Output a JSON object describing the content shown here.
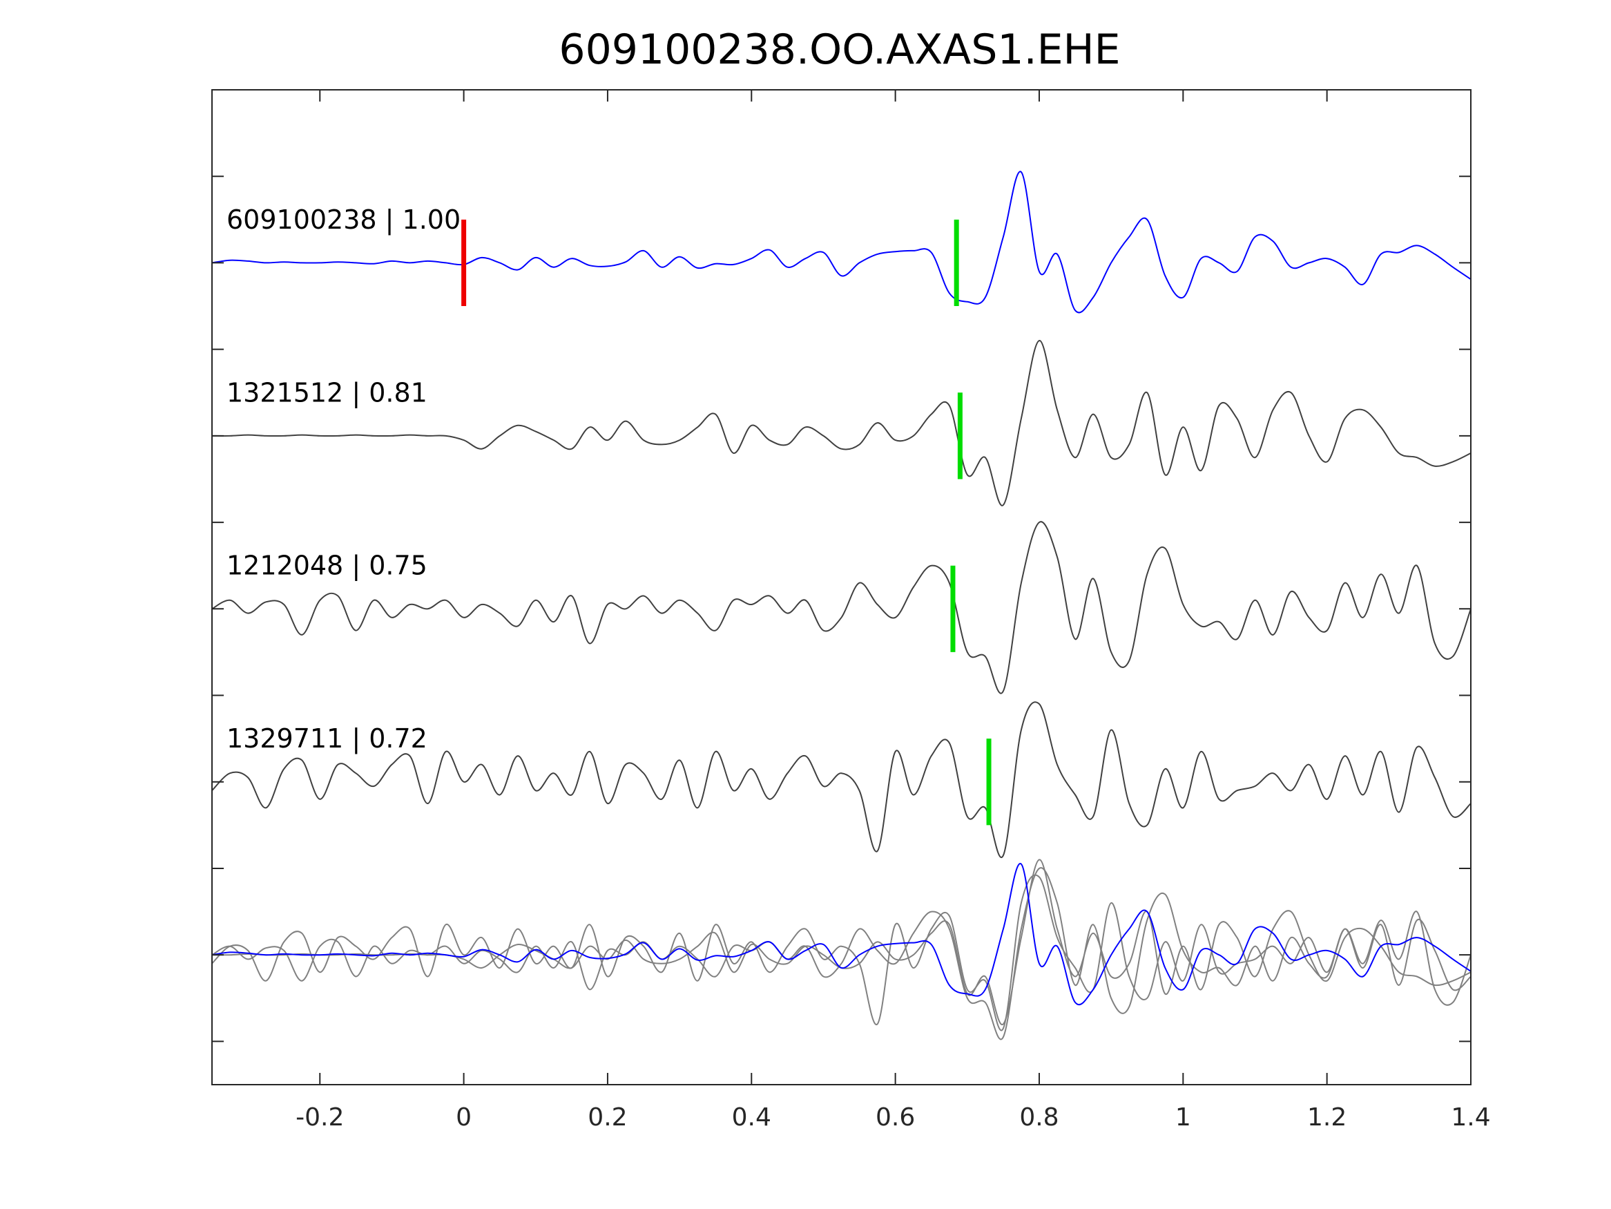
{
  "chart_data": {
    "type": "line",
    "title": "609100238.OO.AXAS1.EHE",
    "xlabel": "",
    "ylabel": "",
    "xlim": [
      -0.35,
      1.4
    ],
    "ylim": [
      -1.5,
      10
    ],
    "xticks": [
      -0.2,
      0,
      0.2,
      0.4,
      0.6,
      0.8,
      1,
      1.2,
      1.4
    ],
    "xtick_labels": [
      "-0.2",
      "0",
      "0.2",
      "0.4",
      "0.6",
      "0.8",
      "1",
      "1.2",
      "1.4"
    ],
    "yticks": [
      -1,
      0,
      1,
      2,
      3,
      4,
      5,
      6,
      7,
      8,
      9
    ],
    "grid": false,
    "x_start": -0.35,
    "dt": 0.025,
    "colors": {
      "reference": "#0000ff",
      "trace": "#404040",
      "stack": "#808080",
      "pick_reference": "#ee0000",
      "pick": "#00dd00",
      "axis": "#262626"
    },
    "series": [
      {
        "name": "609100238",
        "label": "609100238 | 1.00",
        "offset": 8,
        "color": "#0000ff",
        "pick_red": 0,
        "pick_green": 0.685,
        "values": [
          0.0,
          0.03,
          0.02,
          0.0,
          0.01,
          0.0,
          0.0,
          0.01,
          0.0,
          -0.01,
          0.02,
          0.0,
          0.02,
          0.0,
          -0.02,
          0.06,
          0.0,
          -0.08,
          0.06,
          -0.05,
          0.05,
          -0.03,
          -0.04,
          0.01,
          0.14,
          -0.05,
          0.07,
          -0.06,
          -0.01,
          -0.02,
          0.05,
          0.15,
          -0.05,
          0.05,
          0.12,
          -0.15,
          0.0,
          0.1,
          0.13,
          0.14,
          0.12,
          -0.35,
          -0.45,
          -0.4,
          0.3,
          1.05,
          -0.1,
          0.1,
          -0.55,
          -0.4,
          0.0,
          0.3,
          0.5,
          -0.15,
          -0.4,
          0.05,
          0.0,
          -0.1,
          0.3,
          0.25,
          -0.05,
          0.0,
          0.05,
          -0.05,
          -0.25,
          0.1,
          0.12,
          0.2,
          0.1,
          -0.05,
          -0.19
        ]
      },
      {
        "name": "1321512",
        "label": "1321512 | 0.81",
        "offset": 6,
        "color": "#404040",
        "pick_green": 0.69,
        "values": [
          0.0,
          0.0,
          0.01,
          0.0,
          0.0,
          0.01,
          0.0,
          0.0,
          0.01,
          0.0,
          0.0,
          0.01,
          0.0,
          0.0,
          -0.05,
          -0.15,
          0.0,
          0.12,
          0.05,
          -0.05,
          -0.15,
          0.1,
          -0.05,
          0.17,
          -0.05,
          -0.1,
          -0.05,
          0.1,
          0.25,
          -0.2,
          0.12,
          -0.05,
          -0.1,
          0.1,
          0.0,
          -0.15,
          -0.1,
          0.15,
          -0.05,
          0.0,
          0.25,
          0.35,
          -0.45,
          -0.25,
          -0.8,
          0.2,
          1.1,
          0.3,
          -0.25,
          0.25,
          -0.25,
          -0.1,
          0.5,
          -0.45,
          0.1,
          -0.4,
          0.35,
          0.2,
          -0.25,
          0.3,
          0.5,
          0.0,
          -0.3,
          0.2,
          0.3,
          0.1,
          -0.2,
          -0.25,
          -0.35,
          -0.3,
          -0.2
        ]
      },
      {
        "name": "1212048",
        "label": "1212048 | 0.75",
        "offset": 4,
        "color": "#404040",
        "pick_green": 0.68,
        "values": [
          0.0,
          0.1,
          -0.05,
          0.08,
          0.05,
          -0.3,
          0.1,
          0.15,
          -0.25,
          0.1,
          -0.1,
          0.05,
          0.0,
          0.1,
          -0.1,
          0.05,
          -0.05,
          -0.2,
          0.1,
          -0.15,
          0.15,
          -0.4,
          0.05,
          0.0,
          0.15,
          -0.05,
          0.1,
          -0.05,
          -0.25,
          0.1,
          0.05,
          0.15,
          -0.05,
          0.1,
          -0.25,
          -0.1,
          0.3,
          0.05,
          -0.1,
          0.25,
          0.5,
          0.3,
          -0.5,
          -0.55,
          -0.95,
          0.3,
          1.0,
          0.6,
          -0.35,
          0.35,
          -0.5,
          -0.6,
          0.4,
          0.7,
          0.05,
          -0.2,
          -0.15,
          -0.35,
          0.1,
          -0.3,
          0.2,
          -0.1,
          -0.25,
          0.3,
          -0.1,
          0.4,
          -0.05,
          0.5,
          -0.4,
          -0.55,
          0.0
        ]
      },
      {
        "name": "1329711",
        "label": "1329711 | 0.72",
        "offset": 2,
        "color": "#404040",
        "pick_green": 0.73,
        "values": [
          -0.1,
          0.1,
          0.05,
          -0.3,
          0.15,
          0.25,
          -0.2,
          0.2,
          0.1,
          -0.05,
          0.2,
          0.3,
          -0.25,
          0.35,
          0.0,
          0.2,
          -0.15,
          0.3,
          -0.1,
          0.1,
          -0.15,
          0.35,
          -0.25,
          0.2,
          0.1,
          -0.2,
          0.25,
          -0.3,
          0.35,
          -0.1,
          0.15,
          -0.2,
          0.1,
          0.3,
          -0.05,
          0.1,
          -0.1,
          -0.8,
          0.35,
          -0.15,
          0.3,
          0.45,
          -0.4,
          -0.3,
          -0.85,
          0.6,
          0.9,
          0.2,
          -0.15,
          -0.4,
          0.6,
          -0.25,
          -0.5,
          0.15,
          -0.3,
          0.35,
          -0.2,
          -0.1,
          -0.05,
          0.1,
          -0.1,
          0.2,
          -0.2,
          0.3,
          -0.15,
          0.35,
          -0.35,
          0.4,
          0.05,
          -0.4,
          -0.25
        ]
      }
    ],
    "stack": {
      "offset": 0,
      "members": [
        "1321512",
        "1212048",
        "1329711"
      ],
      "reference": "609100238"
    }
  }
}
